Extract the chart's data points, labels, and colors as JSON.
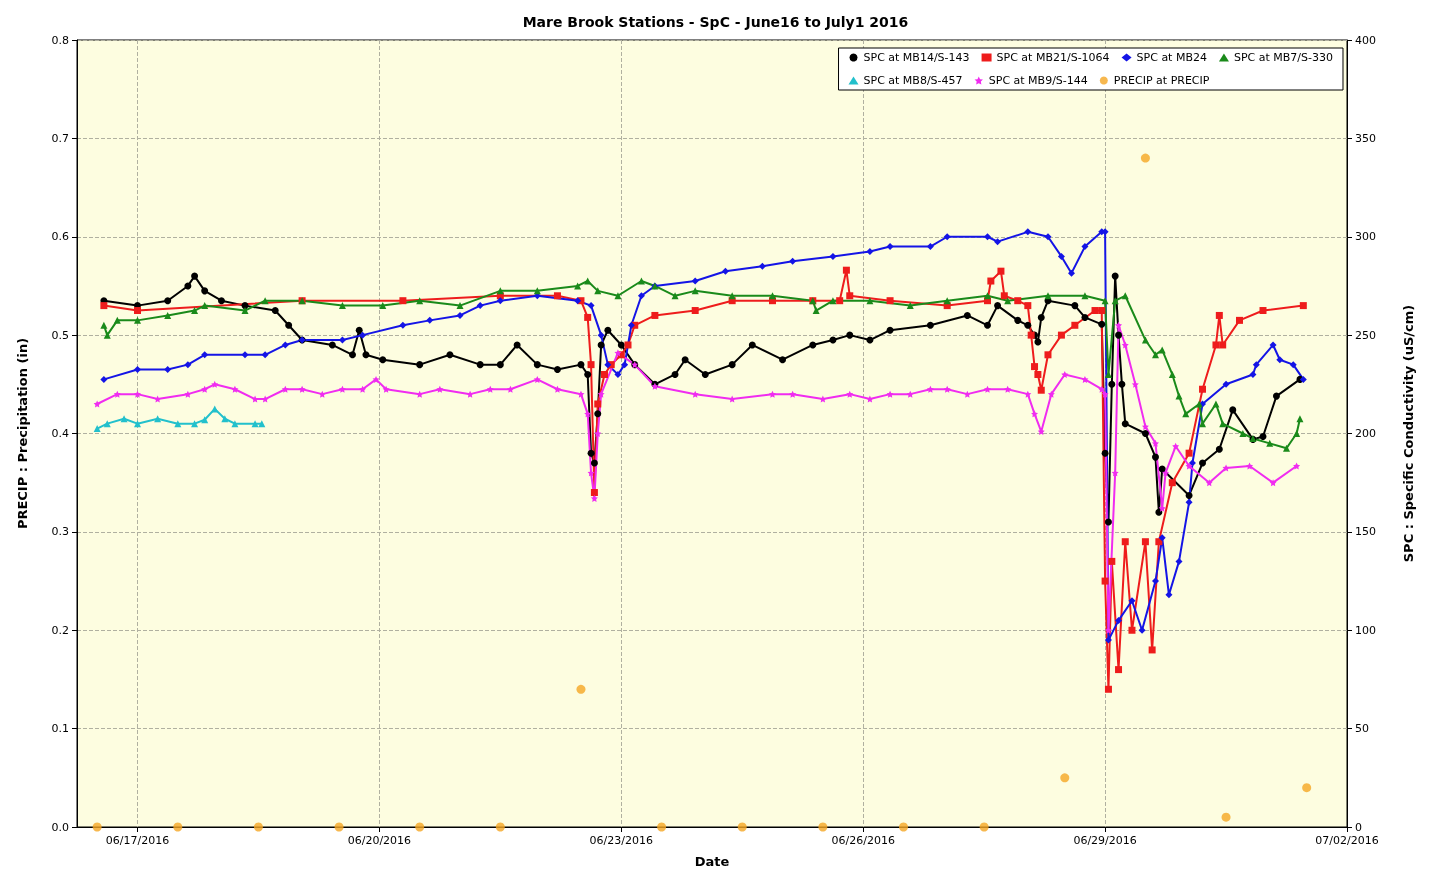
{
  "chart_data": {
    "type": "line",
    "title": "Mare Brook Stations - SpC - June16 to July1 2016",
    "xlabel": "Date",
    "ylabel": "PRECIP : Precipitation (in)",
    "y2label": "SPC : Specific Conductivity (uS/cm)",
    "xlim": [
      "2016-06-16T06:00",
      "2016-07-02"
    ],
    "xticks": [
      {
        "value": "2016-06-17",
        "label": "06/17/2016"
      },
      {
        "value": "2016-06-20",
        "label": "06/20/2016"
      },
      {
        "value": "2016-06-23",
        "label": "06/23/2016"
      },
      {
        "value": "2016-06-26",
        "label": "06/26/2016"
      },
      {
        "value": "2016-06-29",
        "label": "06/29/2016"
      },
      {
        "value": "2016-07-02",
        "label": "07/02/2016"
      }
    ],
    "ylim": [
      0,
      0.8
    ],
    "yticks": [
      {
        "value": 0,
        "label": "0.0"
      },
      0.1,
      0.2,
      0.3,
      0.4,
      0.5,
      0.6,
      0.7,
      0.8
    ],
    "y2lim": [
      0,
      400
    ],
    "y2ticks": [
      0,
      50,
      100,
      150,
      200,
      250,
      300,
      350,
      400
    ],
    "grid": true,
    "legend": "top right",
    "series": [
      {
        "name": "SPC at MB14/S-143",
        "color": "#000000",
        "marker": "circle",
        "axis": "y2",
        "x": [
          "2016-06-16T14:00",
          "2016-06-17T00:00",
          "2016-06-17T09:00",
          "2016-06-17T15:00",
          "2016-06-17T17:00",
          "2016-06-17T20:00",
          "2016-06-18T01:00",
          "2016-06-18T08:00",
          "2016-06-18T17:00",
          "2016-06-18T21:00",
          "2016-06-19T01:00",
          "2016-06-19T10:00",
          "2016-06-19T16:00",
          "2016-06-19T18:00",
          "2016-06-19T20:00",
          "2016-06-20T01:00",
          "2016-06-20T12:00",
          "2016-06-20T21:00",
          "2016-06-21T06:00",
          "2016-06-21T12:00",
          "2016-06-21T17:00",
          "2016-06-21T23:00",
          "2016-06-22T05:00",
          "2016-06-22T12:00",
          "2016-06-22T14:00",
          "2016-06-22T15:00",
          "2016-06-22T16:00",
          "2016-06-22T17:00",
          "2016-06-22T18:00",
          "2016-06-22T20:00",
          "2016-06-23T00:00",
          "2016-06-23T04:00",
          "2016-06-23T10:00",
          "2016-06-23T16:00",
          "2016-06-23T19:00",
          "2016-06-24T01:00",
          "2016-06-24T09:00",
          "2016-06-24T15:00",
          "2016-06-25T00:00",
          "2016-06-25T09:00",
          "2016-06-25T15:00",
          "2016-06-25T20:00",
          "2016-06-26T02:00",
          "2016-06-26T08:00",
          "2016-06-26T20:00",
          "2016-06-27T07:00",
          "2016-06-27T13:00",
          "2016-06-27T16:00",
          "2016-06-27T22:00",
          "2016-06-28T01:00",
          "2016-06-28T03:00",
          "2016-06-28T04:00",
          "2016-06-28T05:00",
          "2016-06-28T07:00",
          "2016-06-28T15:00",
          "2016-06-28T18:00",
          "2016-06-28T23:00",
          "2016-06-29T00:00",
          "2016-06-29T01:00",
          "2016-06-29T02:00",
          "2016-06-29T03:00",
          "2016-06-29T04:00",
          "2016-06-29T05:00",
          "2016-06-29T06:00",
          "2016-06-29T12:00",
          "2016-06-29T15:00",
          "2016-06-29T16:00",
          "2016-06-29T17:00",
          "2016-06-30T01:00",
          "2016-06-30T05:00",
          "2016-06-30T10:00",
          "2016-06-30T14:00",
          "2016-06-30T20:00",
          "2016-06-30T23:00",
          "2016-07-01T03:00",
          "2016-07-01T10:00"
        ],
        "values": [
          267.5,
          265,
          267.5,
          275,
          280,
          272.5,
          267.5,
          265,
          262.5,
          255,
          247.5,
          245,
          240,
          252.5,
          240,
          237.5,
          235,
          240,
          235,
          235,
          245,
          235,
          232.5,
          235,
          230,
          190,
          185,
          210,
          245,
          252.5,
          245,
          235,
          225,
          230,
          237.5,
          230,
          235,
          245,
          237.5,
          245,
          247.5,
          250,
          247.5,
          252.5,
          255,
          260,
          255,
          265,
          257.5,
          255,
          250,
          246.5,
          259,
          267.5,
          265,
          259,
          255.5,
          190,
          155,
          225,
          280,
          250,
          225,
          205,
          200,
          188,
          160,
          182,
          168.5,
          185,
          192,
          212,
          197,
          198.5,
          219,
          227.5
        ]
      },
      {
        "name": "SPC at MB21/S-1064",
        "color": "#ee1c1c",
        "marker": "square",
        "axis": "y2",
        "x": [
          "2016-06-16T14:00",
          "2016-06-17T00:00",
          "2016-06-19T01:00",
          "2016-06-20T07:00",
          "2016-06-21T12:00",
          "2016-06-22T05:00",
          "2016-06-22T12:00",
          "2016-06-22T14:00",
          "2016-06-22T15:00",
          "2016-06-22T16:00",
          "2016-06-22T17:00",
          "2016-06-22T19:00",
          "2016-06-22T21:00",
          "2016-06-23T00:00",
          "2016-06-23T02:00",
          "2016-06-23T04:00",
          "2016-06-23T10:00",
          "2016-06-23T22:00",
          "2016-06-24T09:00",
          "2016-06-24T21:00",
          "2016-06-25T09:00",
          "2016-06-25T17:00",
          "2016-06-25T19:00",
          "2016-06-25T20:00",
          "2016-06-26T08:00",
          "2016-06-27T01:00",
          "2016-06-27T13:00",
          "2016-06-27T14:00",
          "2016-06-27T17:00",
          "2016-06-27T18:00",
          "2016-06-27T22:00",
          "2016-06-28T01:00",
          "2016-06-28T02:00",
          "2016-06-28T03:00",
          "2016-06-28T04:00",
          "2016-06-28T05:00",
          "2016-06-28T07:00",
          "2016-06-28T11:00",
          "2016-06-28T15:00",
          "2016-06-28T21:00",
          "2016-06-28T23:00",
          "2016-06-29T00:00",
          "2016-06-29T01:00",
          "2016-06-29T02:00",
          "2016-06-29T04:00",
          "2016-06-29T06:00",
          "2016-06-29T08:00",
          "2016-06-29T12:00",
          "2016-06-29T14:00",
          "2016-06-29T16:00",
          "2016-06-29T20:00",
          "2016-06-30T01:00",
          "2016-06-30T05:00",
          "2016-06-30T09:00",
          "2016-06-30T10:00",
          "2016-06-30T11:00",
          "2016-06-30T16:00",
          "2016-06-30T23:00",
          "2016-07-01T11:00"
        ],
        "values": [
          265,
          262.5,
          267.5,
          267.5,
          270,
          270,
          267.5,
          259,
          235,
          170,
          215,
          230,
          235,
          240,
          245,
          255,
          260,
          262.5,
          267.5,
          267.5,
          267.5,
          267.5,
          283,
          270,
          267.5,
          265,
          267.5,
          277.5,
          282.5,
          270,
          267.5,
          265,
          250,
          234,
          230,
          222,
          240,
          250,
          255,
          262.5,
          262.5,
          125,
          70,
          135,
          80,
          145,
          100,
          145,
          90,
          145,
          175,
          190,
          222.5,
          245,
          260,
          245,
          257.5,
          262.5,
          265
        ]
      },
      {
        "name": "SPC at MB24",
        "color": "#1414e6",
        "marker": "diamond",
        "axis": "y2",
        "x": [
          "2016-06-16T14:00",
          "2016-06-17T00:00",
          "2016-06-17T09:00",
          "2016-06-17T15:00",
          "2016-06-17T20:00",
          "2016-06-18T08:00",
          "2016-06-18T14:00",
          "2016-06-18T20:00",
          "2016-06-19T01:00",
          "2016-06-19T13:00",
          "2016-06-19T19:00",
          "2016-06-20T07:00",
          "2016-06-20T15:00",
          "2016-06-21T00:00",
          "2016-06-21T06:00",
          "2016-06-21T12:00",
          "2016-06-21T23:00",
          "2016-06-22T11:00",
          "2016-06-22T15:00",
          "2016-06-22T18:00",
          "2016-06-22T20:00",
          "2016-06-22T23:00",
          "2016-06-23T01:00",
          "2016-06-23T03:00",
          "2016-06-23T06:00",
          "2016-06-23T10:00",
          "2016-06-23T22:00",
          "2016-06-24T07:00",
          "2016-06-24T18:00",
          "2016-06-25T03:00",
          "2016-06-25T15:00",
          "2016-06-26T02:00",
          "2016-06-26T08:00",
          "2016-06-26T20:00",
          "2016-06-27T01:00",
          "2016-06-27T13:00",
          "2016-06-27T16:00",
          "2016-06-28T01:00",
          "2016-06-28T07:00",
          "2016-06-28T11:00",
          "2016-06-28T14:00",
          "2016-06-28T18:00",
          "2016-06-28T23:00",
          "2016-06-29T00:00",
          "2016-06-29T01:00",
          "2016-06-29T04:00",
          "2016-06-29T08:00",
          "2016-06-29T11:00",
          "2016-06-29T15:00",
          "2016-06-29T17:00",
          "2016-06-29T19:00",
          "2016-06-29T22:00",
          "2016-06-30T01:00",
          "2016-06-30T02:00",
          "2016-06-30T05:00",
          "2016-06-30T12:00",
          "2016-06-30T20:00",
          "2016-06-30T21:00",
          "2016-07-01T02:00",
          "2016-07-01T04:00",
          "2016-07-01T08:00",
          "2016-07-01T11:00"
        ],
        "values": [
          227.5,
          232.5,
          232.5,
          235,
          240,
          240,
          240,
          245,
          247.5,
          247.5,
          250,
          255,
          257.5,
          260,
          265,
          267.5,
          270,
          267.5,
          265,
          250,
          235,
          230,
          235,
          255,
          270,
          275,
          277.5,
          282.5,
          285,
          287.5,
          290,
          292.5,
          295,
          295,
          300,
          300,
          297.5,
          302.5,
          300,
          290,
          281.5,
          295,
          302.5,
          302.5,
          95,
          105,
          115,
          100,
          125,
          147,
          118,
          135,
          165,
          185,
          215,
          225,
          230,
          235,
          245,
          237.5,
          235,
          227.5
        ]
      },
      {
        "name": "SPC at MB7/S-330",
        "color": "#1a8a1a",
        "marker": "triangle",
        "axis": "y2",
        "x": [
          "2016-06-16T14:00",
          "2016-06-16T15:00",
          "2016-06-16T18:00",
          "2016-06-17T00:00",
          "2016-06-17T09:00",
          "2016-06-17T17:00",
          "2016-06-17T20:00",
          "2016-06-18T08:00",
          "2016-06-18T14:00",
          "2016-06-19T01:00",
          "2016-06-19T13:00",
          "2016-06-20T01:00",
          "2016-06-20T12:00",
          "2016-06-21T00:00",
          "2016-06-21T12:00",
          "2016-06-21T23:00",
          "2016-06-22T11:00",
          "2016-06-22T14:00",
          "2016-06-22T17:00",
          "2016-06-22T23:00",
          "2016-06-23T06:00",
          "2016-06-23T10:00",
          "2016-06-23T16:00",
          "2016-06-23T22:00",
          "2016-06-24T09:00",
          "2016-06-24T21:00",
          "2016-06-25T09:00",
          "2016-06-25T10:00",
          "2016-06-25T15:00",
          "2016-06-26T02:00",
          "2016-06-26T14:00",
          "2016-06-27T01:00",
          "2016-06-27T13:00",
          "2016-06-27T19:00",
          "2016-06-28T07:00",
          "2016-06-28T18:00",
          "2016-06-29T00:00",
          "2016-06-29T01:00",
          "2016-06-29T03:00",
          "2016-06-29T06:00",
          "2016-06-29T12:00",
          "2016-06-29T15:00",
          "2016-06-29T17:00",
          "2016-06-29T20:00",
          "2016-06-29T22:00",
          "2016-06-30T00:00",
          "2016-06-30T04:00",
          "2016-06-30T05:00",
          "2016-06-30T09:00",
          "2016-06-30T11:00",
          "2016-06-30T17:00",
          "2016-06-30T20:00",
          "2016-07-01T01:00",
          "2016-07-01T06:00",
          "2016-07-01T09:00",
          "2016-07-01T10:00"
        ],
        "values": [
          255,
          250,
          257.5,
          257.5,
          260,
          262.5,
          265,
          262.5,
          267.5,
          267.5,
          265,
          265,
          267.5,
          265,
          272.5,
          272.5,
          275,
          277.5,
          272.5,
          270,
          277.5,
          275,
          270,
          272.5,
          270,
          270,
          267.5,
          262.5,
          267.5,
          267.5,
          265,
          267.5,
          270,
          267.5,
          270,
          270,
          267.5,
          230,
          267.5,
          270,
          247.5,
          240,
          242.5,
          230,
          219,
          210,
          215,
          205,
          215,
          205,
          200,
          197.5,
          195,
          192.5,
          200,
          207.5
        ]
      },
      {
        "name": "SPC at MB8/S-457",
        "color": "#22c0cc",
        "marker": "triangle",
        "axis": "y2",
        "x": [
          "2016-06-16T12:00",
          "2016-06-16T15:00",
          "2016-06-16T20:00",
          "2016-06-17T00:00",
          "2016-06-17T06:00",
          "2016-06-17T12:00",
          "2016-06-17T17:00",
          "2016-06-17T20:00",
          "2016-06-17T23:00",
          "2016-06-18T02:00",
          "2016-06-18T05:00",
          "2016-06-18T11:00",
          "2016-06-18T13:00"
        ],
        "values": [
          202.5,
          205,
          207.5,
          205,
          207.5,
          205,
          205,
          207,
          212.5,
          207.5,
          205,
          205,
          205
        ]
      },
      {
        "name": "SPC at MB9/S-144",
        "color": "#f02cf0",
        "marker": "star",
        "axis": "y2",
        "x": [
          "2016-06-16T12:00",
          "2016-06-16T18:00",
          "2016-06-17T00:00",
          "2016-06-17T06:00",
          "2016-06-17T15:00",
          "2016-06-17T20:00",
          "2016-06-17T23:00",
          "2016-06-18T05:00",
          "2016-06-18T11:00",
          "2016-06-18T14:00",
          "2016-06-18T20:00",
          "2016-06-19T01:00",
          "2016-06-19T07:00",
          "2016-06-19T13:00",
          "2016-06-19T19:00",
          "2016-06-19T23:00",
          "2016-06-20T02:00",
          "2016-06-20T12:00",
          "2016-06-20T18:00",
          "2016-06-21T03:00",
          "2016-06-21T09:00",
          "2016-06-21T15:00",
          "2016-06-21T23:00",
          "2016-06-22T05:00",
          "2016-06-22T12:00",
          "2016-06-22T14:00",
          "2016-06-22T15:00",
          "2016-06-22T16:00",
          "2016-06-22T17:00",
          "2016-06-22T18:00",
          "2016-06-22T23:00",
          "2016-06-23T04:00",
          "2016-06-23T10:00",
          "2016-06-23T22:00",
          "2016-06-24T09:00",
          "2016-06-24T21:00",
          "2016-06-25T03:00",
          "2016-06-25T12:00",
          "2016-06-25T20:00",
          "2016-06-26T02:00",
          "2016-06-26T08:00",
          "2016-06-26T14:00",
          "2016-06-26T20:00",
          "2016-06-27T01:00",
          "2016-06-27T07:00",
          "2016-06-27T13:00",
          "2016-06-27T19:00",
          "2016-06-28T01:00",
          "2016-06-28T03:00",
          "2016-06-28T05:00",
          "2016-06-28T08:00",
          "2016-06-28T12:00",
          "2016-06-28T18:00",
          "2016-06-28T23:00",
          "2016-06-29T00:00",
          "2016-06-29T01:00",
          "2016-06-29T03:00",
          "2016-06-29T04:00",
          "2016-06-29T06:00",
          "2016-06-29T09:00",
          "2016-06-29T12:00",
          "2016-06-29T15:00",
          "2016-06-29T17:00",
          "2016-06-29T18:00",
          "2016-06-29T21:00",
          "2016-06-30T01:00",
          "2016-06-30T07:00",
          "2016-06-30T12:00",
          "2016-06-30T19:00",
          "2016-07-01T02:00",
          "2016-07-01T09:00"
        ],
        "values": [
          215,
          220,
          220,
          217.5,
          220,
          222.5,
          225,
          222.5,
          217.5,
          217.5,
          222.5,
          222.5,
          220,
          222.5,
          222.5,
          227.5,
          222.5,
          220,
          222.5,
          220,
          222.5,
          222.5,
          227.5,
          222.5,
          220,
          210,
          180,
          167,
          200,
          220,
          241,
          235,
          224,
          220,
          217.5,
          220,
          220,
          217.5,
          220,
          217.5,
          220,
          220,
          222.5,
          222.5,
          220,
          222.5,
          222.5,
          220,
          210,
          201,
          220,
          230,
          227.5,
          222.5,
          220,
          100,
          180,
          255,
          245,
          225,
          203.5,
          195,
          162,
          180,
          193.5,
          183.5,
          175,
          182.5,
          183.5,
          175,
          183.5
        ]
      },
      {
        "name": "PRECIP at PRECIP",
        "type": "scatter",
        "color": "#f5a623",
        "marker": "circle",
        "x": [
          "2016-06-16T12:00",
          "2016-06-17T12:00",
          "2016-06-18T12:00",
          "2016-06-19T12:00",
          "2016-06-20T12:00",
          "2016-06-21T12:00",
          "2016-06-22T12:00",
          "2016-06-23T12:00",
          "2016-06-24T12:00",
          "2016-06-25T12:00",
          "2016-06-26T12:00",
          "2016-06-27T12:00",
          "2016-06-28T12:00",
          "2016-06-29T12:00",
          "2016-06-30T12:00",
          "2016-07-01T12:00"
        ],
        "values": [
          0,
          0,
          0,
          0,
          0,
          0,
          0.14,
          0,
          0,
          0,
          0,
          0,
          0.05,
          0.68,
          0.01,
          0.04
        ]
      }
    ]
  }
}
